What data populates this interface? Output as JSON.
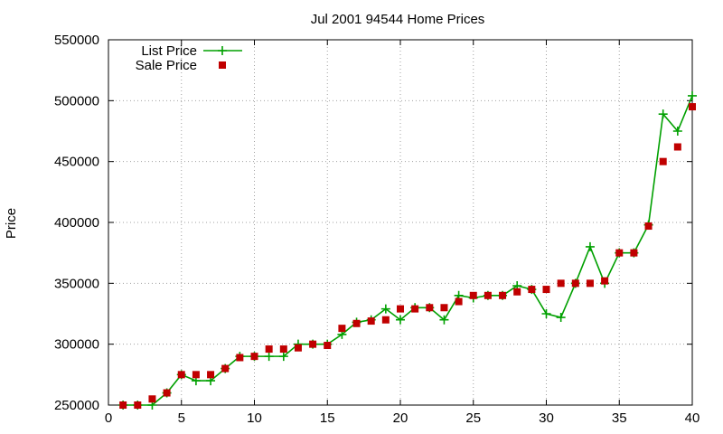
{
  "chart_data": {
    "type": "line",
    "title": "Jul 2001 94544 Home Prices",
    "xlabel": "",
    "ylabel": "Price",
    "xlim": [
      0,
      40
    ],
    "ylim": [
      250000,
      550000
    ],
    "xticks": [
      0,
      5,
      10,
      15,
      20,
      25,
      30,
      35,
      40
    ],
    "yticks": [
      250000,
      300000,
      350000,
      400000,
      450000,
      500000,
      550000
    ],
    "grid": true,
    "legend_position": "top-left",
    "series": [
      {
        "name": "List Price",
        "style": "line-points",
        "marker": "plus",
        "color": "#00a000",
        "x": [
          1,
          2,
          3,
          4,
          5,
          6,
          7,
          8,
          9,
          10,
          11,
          12,
          13,
          14,
          15,
          16,
          17,
          18,
          19,
          20,
          21,
          22,
          23,
          24,
          25,
          26,
          27,
          28,
          29,
          30,
          31,
          32,
          33,
          34,
          35,
          36,
          37,
          38,
          39,
          40
        ],
        "values": [
          250000,
          250000,
          250000,
          260000,
          275000,
          270000,
          270000,
          280000,
          290000,
          290000,
          290000,
          290000,
          300000,
          300000,
          300000,
          308000,
          318000,
          320000,
          329000,
          320000,
          330000,
          330000,
          320000,
          340000,
          338000,
          340000,
          340000,
          348000,
          345000,
          325000,
          322000,
          350000,
          380000,
          350000,
          375000,
          375000,
          398000,
          489000,
          475000,
          504000
        ]
      },
      {
        "name": "Sale Price",
        "style": "points",
        "marker": "square",
        "color": "#c00000",
        "x": [
          1,
          2,
          3,
          4,
          5,
          6,
          7,
          8,
          9,
          10,
          11,
          12,
          13,
          14,
          15,
          16,
          17,
          18,
          19,
          20,
          21,
          22,
          23,
          24,
          25,
          26,
          27,
          28,
          29,
          30,
          31,
          32,
          33,
          34,
          35,
          36,
          37,
          38,
          39,
          40
        ],
        "values": [
          250000,
          250000,
          255000,
          260000,
          275000,
          275000,
          275000,
          280000,
          289000,
          290000,
          296000,
          296000,
          297000,
          300000,
          299000,
          313000,
          317000,
          319000,
          320000,
          329000,
          329000,
          330000,
          330000,
          335000,
          340000,
          340000,
          340000,
          343000,
          345000,
          345000,
          350000,
          350000,
          350000,
          352000,
          375000,
          375000,
          397000,
          450000,
          462000,
          495000
        ]
      }
    ]
  }
}
